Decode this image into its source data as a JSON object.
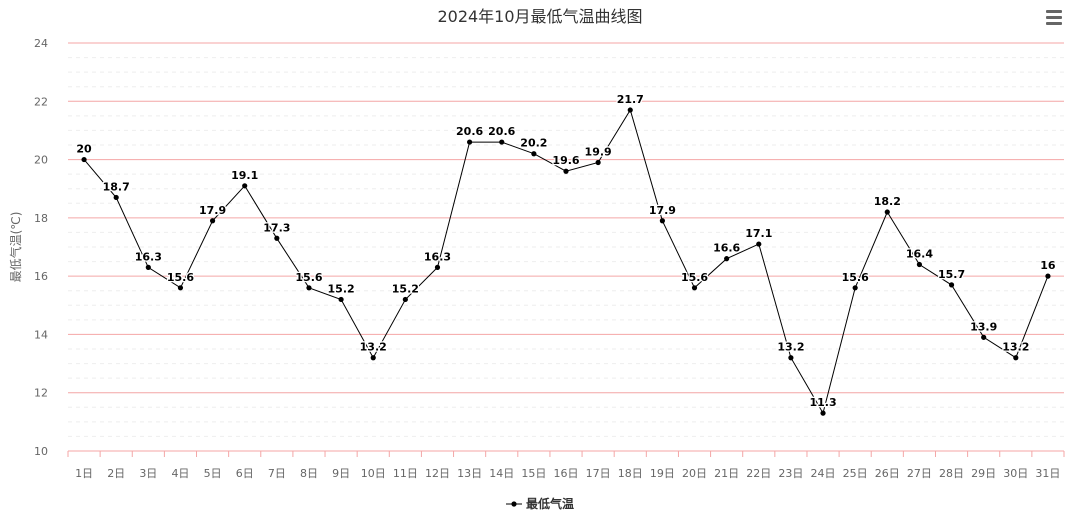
{
  "chart_data": {
    "type": "line",
    "title": "2024年10月最低气温曲线图",
    "ylabel": "最低气温(℃)",
    "xlabel": "",
    "ylim": [
      10,
      24
    ],
    "yticks": [
      10,
      12,
      14,
      16,
      18,
      20,
      22,
      24
    ],
    "grid": true,
    "legend_position": "bottom-center",
    "categories": [
      "1日",
      "2日",
      "3日",
      "4日",
      "5日",
      "6日",
      "7日",
      "8日",
      "9日",
      "10日",
      "11日",
      "12日",
      "13日",
      "14日",
      "15日",
      "16日",
      "17日",
      "18日",
      "19日",
      "20日",
      "21日",
      "22日",
      "23日",
      "24日",
      "25日",
      "26日",
      "27日",
      "28日",
      "29日",
      "30日",
      "31日"
    ],
    "series": [
      {
        "name": "最低气温",
        "color": "#000000",
        "values": [
          20,
          18.7,
          16.3,
          15.6,
          17.9,
          19.1,
          17.3,
          15.6,
          15.2,
          13.2,
          15.2,
          16.3,
          20.6,
          20.6,
          20.2,
          19.6,
          19.9,
          21.7,
          17.9,
          15.6,
          16.6,
          17.1,
          13.2,
          11.3,
          15.6,
          18.2,
          16.4,
          15.7,
          13.9,
          13.2,
          16
        ]
      }
    ],
    "gridline_color": "#f4a6a6",
    "minor_gridline_color": "#eeeeee"
  },
  "toolbar": {
    "menu_icon": "hamburger-menu-icon"
  }
}
